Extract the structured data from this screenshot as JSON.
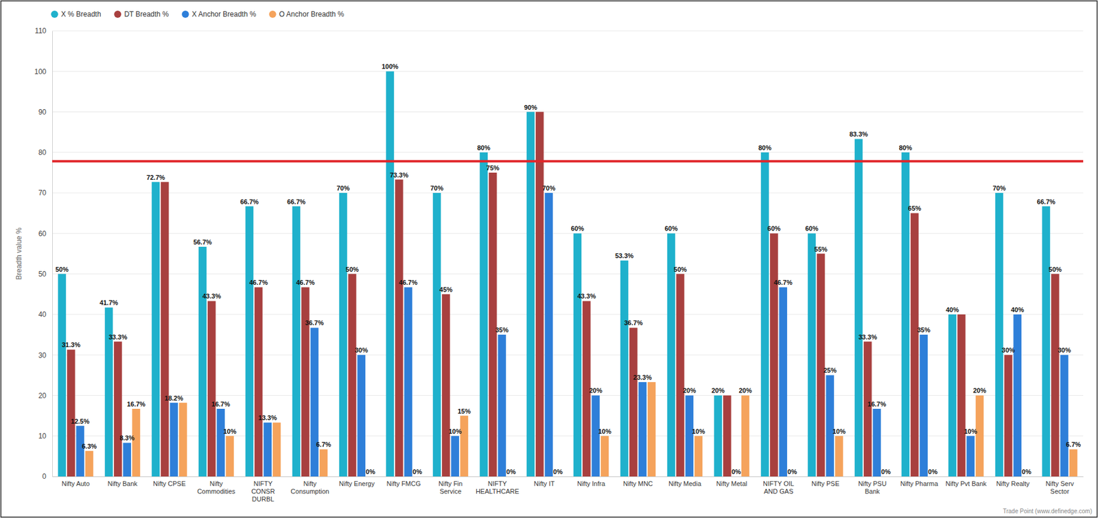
{
  "chart_data": {
    "type": "bar",
    "y_label": "Breadth value %",
    "source": "Trade Point (www.definedge.com)",
    "categories": [
      "Nifty Auto",
      "Nifty Bank",
      "Nifty CPSE",
      "Nifty Commodities",
      "NIFTY CONSR DURBL",
      "Nifty Consumption",
      "Nifty Energy",
      "Nifty FMCG",
      "Nifty Fin Service",
      "NIFTY HEALTHCARE",
      "Nifty IT",
      "Nifty Infra",
      "Nifty MNC",
      "Nifty Media",
      "Nifty Metal",
      "NIFTY OIL AND GAS",
      "Nifty PSE",
      "Nifty PSU Bank",
      "Nifty Pharma",
      "Nifty Pvt Bank",
      "Nifty Realty",
      "Nifty Serv Sector"
    ],
    "series": [
      {
        "name": "X % Breadth",
        "color": "#1fb1cc",
        "values": [
          50,
          41.7,
          72.7,
          56.7,
          66.7,
          66.7,
          70,
          100,
          70,
          80,
          90,
          60,
          53.3,
          60,
          20,
          80,
          60,
          83.3,
          80,
          40,
          70,
          66.7
        ],
        "value_labels": [
          "50%",
          "41.7%",
          "72.7%",
          "56.7%",
          "66.7%",
          "66.7%",
          "70%",
          "100%",
          "70%",
          "80%",
          "90%",
          "60%",
          "53.3%",
          "60%",
          "20%",
          "80%",
          "60%",
          "83.3%",
          "80%",
          "40%",
          "70%",
          "66.7%"
        ]
      },
      {
        "name": "DT Breadth %",
        "color": "#a8403f",
        "values": [
          31.3,
          33.3,
          72.7,
          43.3,
          46.7,
          46.7,
          50,
          73.3,
          45,
          75,
          90,
          43.3,
          36.7,
          50,
          20,
          60,
          55,
          33.3,
          65,
          40,
          30,
          50
        ],
        "value_labels": [
          "31.3%",
          "33.3%",
          null,
          "43.3%",
          "46.7%",
          "46.7%",
          "50%",
          "73.3%",
          "45%",
          "75%",
          null,
          "43.3%",
          "36.7%",
          "50%",
          null,
          "60%",
          "55%",
          "33.3%",
          "65%",
          null,
          "30%",
          "50%"
        ]
      },
      {
        "name": "X Anchor Breadth %",
        "color": "#2e7fd9",
        "values": [
          12.5,
          8.3,
          18.2,
          16.7,
          13.3,
          36.7,
          30,
          46.7,
          10,
          35,
          70,
          20,
          23.3,
          20,
          0,
          46.7,
          25,
          16.7,
          35,
          10,
          40,
          30
        ],
        "value_labels": [
          "12.5%",
          "8.3%",
          "18.2%",
          "16.7%",
          "13.3%",
          "36.7%",
          "30%",
          "46.7%",
          "10%",
          "35%",
          "70%",
          "20%",
          "23.3%",
          "20%",
          "0%",
          "46.7%",
          "25%",
          "16.7%",
          "35%",
          "10%",
          "40%",
          "30%"
        ]
      },
      {
        "name": "O Anchor Breadth %",
        "color": "#f5a35c",
        "values": [
          6.3,
          16.7,
          18.2,
          10,
          13.3,
          6.7,
          0,
          0,
          15,
          0,
          0,
          10,
          23.3,
          10,
          20,
          0,
          10,
          0,
          0,
          20,
          0,
          6.7
        ],
        "value_labels": [
          "6.3%",
          "16.7%",
          null,
          "10%",
          null,
          "6.7%",
          "0%",
          "0%",
          "15%",
          "0%",
          "0%",
          "10%",
          null,
          "10%",
          "20%",
          "0%",
          "10%",
          "0%",
          "0%",
          "20%",
          "0%",
          "6.7%"
        ]
      }
    ],
    "threshold": 77.8,
    "ylim": [
      0,
      110
    ],
    "yticks": [
      0,
      10,
      20,
      30,
      40,
      50,
      60,
      70,
      80,
      90,
      100,
      110
    ],
    "grid": true,
    "legend": "top-left",
    "data_labels": true
  }
}
